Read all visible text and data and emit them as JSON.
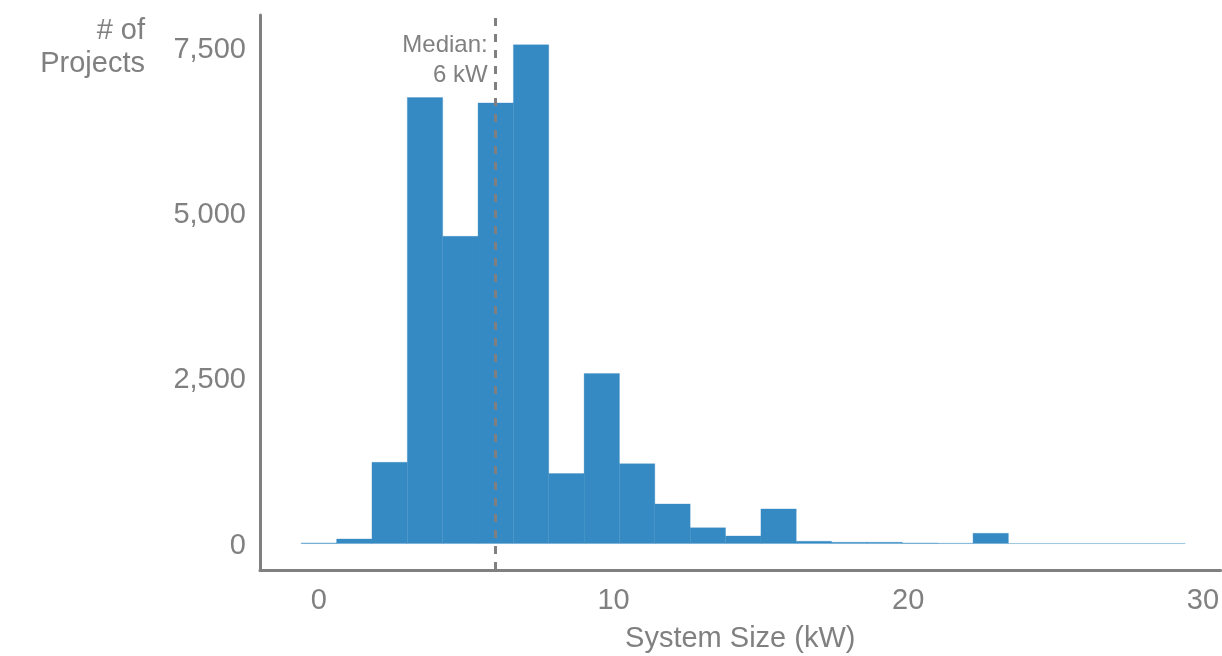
{
  "chart_data": {
    "type": "histogram",
    "xlabel": "System Size (kW)",
    "ylabel": "# of\nProjects",
    "bins": [
      -0.6,
      0.6,
      1.8,
      3,
      4.2,
      5.4,
      6.6,
      7.8,
      9,
      10.2,
      11.4,
      12.6,
      13.8,
      15,
      16.2,
      17.4,
      18.6,
      19.8,
      21,
      22.2,
      23.4,
      24.6,
      25.8,
      27,
      28.2,
      29.4
    ],
    "values": [
      10,
      70,
      1230,
      6750,
      4650,
      6670,
      7550,
      1060,
      2575,
      1210,
      600,
      240,
      115,
      525,
      35,
      20,
      20,
      10,
      5,
      155,
      2,
      2,
      2,
      2,
      2
    ],
    "color": "#358ac3",
    "xlim": [
      -2,
      30.6
    ],
    "xticks": [
      0,
      10,
      20,
      30
    ],
    "ylim": [
      -400,
      8000
    ],
    "yticks": [
      {
        "value": 0,
        "label": "0"
      },
      {
        "value": 2500,
        "label": "2,500"
      },
      {
        "value": 5000,
        "label": "5,000"
      },
      {
        "value": 7500,
        "label": "7,500"
      }
    ],
    "grid": false,
    "legend": false,
    "ref_lines": [
      {
        "axis": "x",
        "value": 6,
        "label": "Median:\n6 kW",
        "color": "#808080",
        "line_style": "dashed"
      }
    ]
  }
}
